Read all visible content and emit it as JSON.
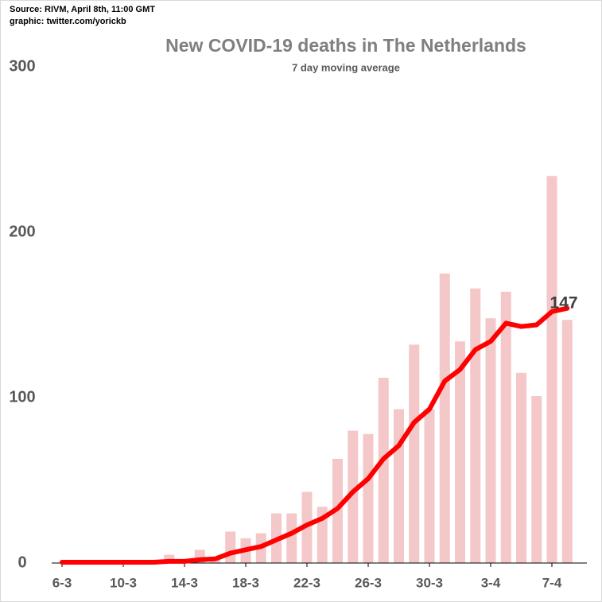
{
  "source": [
    "Source: RIVM, April 8th, 11:00 GMT",
    "graphic: twitter.com/yorickb"
  ],
  "chart_data": {
    "type": "bar",
    "title": "New COVID-19 deaths  in The Netherlands",
    "subtitle": "7 day moving average",
    "annotation": "147",
    "categories": [
      "6-3",
      null,
      null,
      null,
      "10-3",
      null,
      null,
      null,
      "14-3",
      null,
      null,
      null,
      "18-3",
      null,
      null,
      null,
      "22-3",
      null,
      null,
      null,
      "26-3",
      null,
      null,
      null,
      "30-3",
      null,
      null,
      null,
      "3-4",
      null,
      null,
      null,
      "7-4",
      null
    ],
    "series": [
      {
        "kind": "bar",
        "color": "#f4c7c9",
        "values": [
          0,
          0,
          0,
          0,
          0,
          1,
          1,
          5,
          2,
          8,
          2,
          19,
          15,
          18,
          30,
          30,
          43,
          34,
          63,
          80,
          78,
          112,
          93,
          132,
          93,
          175,
          134,
          166,
          148,
          164,
          115,
          101,
          234,
          147
        ]
      },
      {
        "kind": "line",
        "color": "#ff0000",
        "values": [
          0.5,
          0.5,
          0.5,
          0.5,
          0.5,
          0.5,
          0.5,
          1,
          1,
          2,
          2.5,
          6,
          8,
          10,
          14,
          18,
          23,
          27,
          33,
          43,
          51,
          63,
          71,
          85,
          93,
          110,
          117,
          129,
          134,
          145,
          143,
          144,
          152,
          154
        ]
      }
    ],
    "ylim": [
      0,
      300
    ],
    "yticks": [
      0,
      100,
      200,
      300
    ],
    "grid": false
  }
}
